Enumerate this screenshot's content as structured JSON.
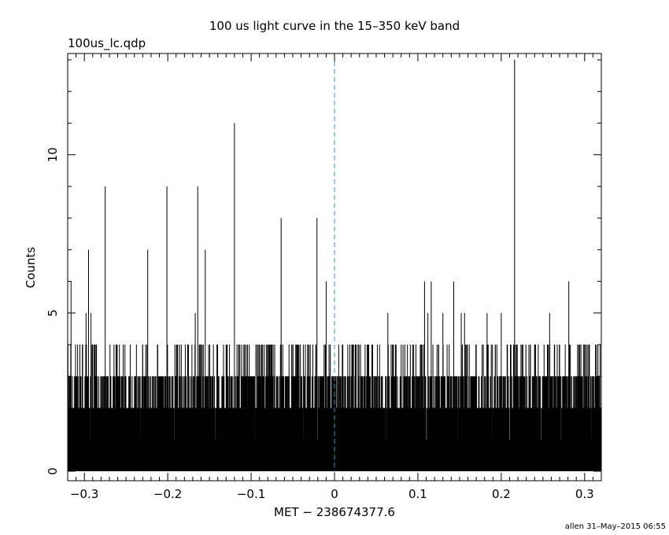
{
  "chart_data": {
    "type": "bar",
    "title": "100 us light curve in the 15–350 keV band",
    "file_label": "100us_lc.qdp",
    "xlabel": "MET − 238674377.6",
    "ylabel": "Counts",
    "footer": "allen 31–May–2015 06:55",
    "xlim": [
      -0.32,
      0.32
    ],
    "ylim": [
      -0.3,
      13.2
    ],
    "x_ticks": [
      -0.3,
      -0.2,
      -0.1,
      0,
      0.1,
      0.2,
      0.3
    ],
    "x_tick_labels": [
      "−0.3",
      "−0.2",
      "−0.1",
      "0",
      "0.1",
      "0.2",
      "0.3"
    ],
    "y_ticks": [
      0,
      5,
      10
    ],
    "y_tick_labels": [
      "0",
      "5",
      "10"
    ],
    "trigger_line_x": 0,
    "bin_width": 0.0001,
    "peaks": [
      {
        "x": -0.316,
        "y": 6
      },
      {
        "x": -0.298,
        "y": 5
      },
      {
        "x": -0.295,
        "y": 7
      },
      {
        "x": -0.292,
        "y": 5
      },
      {
        "x": -0.275,
        "y": 9
      },
      {
        "x": -0.262,
        "y": 4
      },
      {
        "x": -0.245,
        "y": 4
      },
      {
        "x": -0.224,
        "y": 7
      },
      {
        "x": -0.212,
        "y": 4
      },
      {
        "x": -0.201,
        "y": 9
      },
      {
        "x": -0.188,
        "y": 4
      },
      {
        "x": -0.176,
        "y": 4
      },
      {
        "x": -0.167,
        "y": 5
      },
      {
        "x": -0.164,
        "y": 9
      },
      {
        "x": -0.155,
        "y": 7
      },
      {
        "x": -0.141,
        "y": 4
      },
      {
        "x": -0.13,
        "y": 4
      },
      {
        "x": -0.12,
        "y": 11
      },
      {
        "x": -0.105,
        "y": 4
      },
      {
        "x": -0.09,
        "y": 4
      },
      {
        "x": -0.075,
        "y": 4
      },
      {
        "x": -0.064,
        "y": 8
      },
      {
        "x": -0.05,
        "y": 4
      },
      {
        "x": -0.035,
        "y": 4
      },
      {
        "x": -0.021,
        "y": 8
      },
      {
        "x": -0.01,
        "y": 6
      },
      {
        "x": -0.005,
        "y": 4
      },
      {
        "x": 0.01,
        "y": 4
      },
      {
        "x": 0.025,
        "y": 4
      },
      {
        "x": 0.045,
        "y": 4
      },
      {
        "x": 0.064,
        "y": 5
      },
      {
        "x": 0.08,
        "y": 4
      },
      {
        "x": 0.095,
        "y": 4
      },
      {
        "x": 0.108,
        "y": 6
      },
      {
        "x": 0.112,
        "y": 5
      },
      {
        "x": 0.116,
        "y": 6
      },
      {
        "x": 0.125,
        "y": 4
      },
      {
        "x": 0.13,
        "y": 5
      },
      {
        "x": 0.143,
        "y": 6
      },
      {
        "x": 0.152,
        "y": 5
      },
      {
        "x": 0.156,
        "y": 5
      },
      {
        "x": 0.17,
        "y": 4
      },
      {
        "x": 0.183,
        "y": 5
      },
      {
        "x": 0.188,
        "y": 4
      },
      {
        "x": 0.2,
        "y": 5
      },
      {
        "x": 0.207,
        "y": 4
      },
      {
        "x": 0.216,
        "y": 13
      },
      {
        "x": 0.226,
        "y": 4
      },
      {
        "x": 0.24,
        "y": 4
      },
      {
        "x": 0.258,
        "y": 5
      },
      {
        "x": 0.27,
        "y": 4
      },
      {
        "x": 0.281,
        "y": 6
      },
      {
        "x": 0.3,
        "y": 4
      },
      {
        "x": 0.316,
        "y": 4
      }
    ]
  }
}
